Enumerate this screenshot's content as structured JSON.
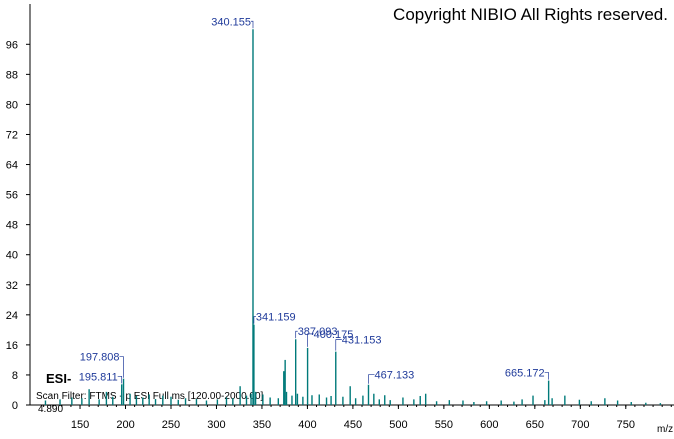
{
  "chart_data": {
    "type": "stem",
    "title": "Copyright NIBIO All Rights reserved.",
    "ionization": "ESI-",
    "scan_filter": "Scan Filter: FTMS - p ESI Full ms [120.00-2000.00]",
    "retention": "4.890",
    "x_label": "m/z",
    "color": "#007a7a",
    "label_color": "#1f3a9a",
    "xlim": [
      95,
      803
    ],
    "ylim": [
      0,
      103
    ],
    "xticks": [
      150,
      200,
      250,
      300,
      350,
      400,
      450,
      500,
      550,
      600,
      650,
      700,
      750
    ],
    "yticks": [
      0,
      8,
      16,
      24,
      32,
      40,
      48,
      56,
      64,
      72,
      80,
      88,
      96
    ],
    "labeled_peaks": {
      "x": [
        340.155,
        341.159,
        387.093,
        400.175,
        431.153,
        467.133,
        665.172,
        197.808,
        195.811
      ],
      "values": [
        100,
        21.4,
        17.5,
        15.2,
        14.2,
        5.4,
        6.5,
        7,
        5.5
      ]
    },
    "peaks": {
      "x": [
        112,
        128,
        141,
        152,
        160,
        171,
        179,
        186,
        205,
        212,
        219,
        226,
        233,
        241,
        250,
        258,
        266,
        278,
        289,
        301,
        311,
        318,
        326,
        333,
        338,
        343,
        351,
        359,
        368,
        374,
        375.5,
        377,
        383,
        389,
        395,
        405,
        413,
        421,
        426,
        439,
        447,
        453,
        461,
        473,
        479,
        485,
        491,
        505,
        517,
        524,
        530,
        542,
        556,
        571,
        583,
        597,
        613,
        627,
        636,
        648,
        661,
        669,
        683,
        699,
        712,
        727,
        741,
        756,
        772,
        788
      ],
      "values": [
        1.2,
        1.5,
        2,
        1.8,
        4.2,
        1.5,
        3.5,
        2.2,
        3,
        2.4,
        2,
        2.8,
        1.6,
        2.5,
        2.2,
        1.4,
        1.8,
        1.6,
        1.2,
        1.5,
        2,
        1.8,
        5,
        2.5,
        3,
        3.5,
        2.8,
        2,
        1.8,
        9,
        12,
        3.5,
        2.5,
        3,
        2.2,
        2.6,
        2.8,
        2,
        2.4,
        2.2,
        5,
        1.8,
        2.5,
        3,
        1.5,
        2.6,
        1.3,
        2,
        1.5,
        2.4,
        3,
        1,
        1.3,
        1.2,
        0.8,
        1,
        1.2,
        0.9,
        1.5,
        2.5,
        1.3,
        1.8,
        2.5,
        1.4,
        1,
        1.8,
        1.2,
        0.8,
        0.6,
        0.5
      ]
    }
  }
}
